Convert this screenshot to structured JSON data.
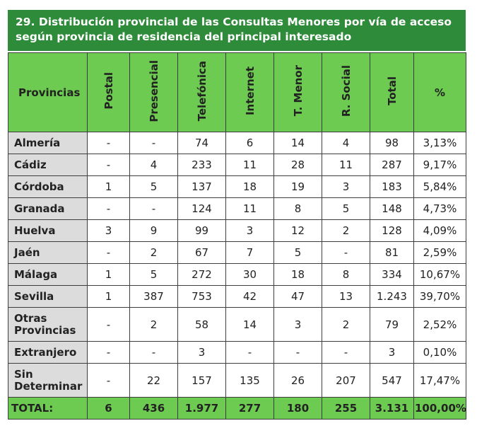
{
  "title": {
    "line1": "29. Distribución provincial de las Consultas Menores por vía de acceso",
    "line2": "según provincia de residencia del principal interesado"
  },
  "headers": [
    "Provincias",
    "Postal",
    "Presencial",
    "Telefónica",
    "Internet",
    "T. Menor",
    "R. Social",
    "Total",
    "%"
  ],
  "rows": [
    {
      "prov": [
        "Almería"
      ],
      "vals": [
        "-",
        "-",
        "74",
        "6",
        "14",
        "4",
        "98",
        "3,13%"
      ]
    },
    {
      "prov": [
        "Cádiz"
      ],
      "vals": [
        "-",
        "4",
        "233",
        "11",
        "28",
        "11",
        "287",
        "9,17%"
      ]
    },
    {
      "prov": [
        "Córdoba"
      ],
      "vals": [
        "1",
        "5",
        "137",
        "18",
        "19",
        "3",
        "183",
        "5,84%"
      ]
    },
    {
      "prov": [
        "Granada"
      ],
      "vals": [
        "-",
        "-",
        "124",
        "11",
        "8",
        "5",
        "148",
        "4,73%"
      ]
    },
    {
      "prov": [
        "Huelva"
      ],
      "vals": [
        "3",
        "9",
        "99",
        "3",
        "12",
        "2",
        "128",
        "4,09%"
      ]
    },
    {
      "prov": [
        "Jaén"
      ],
      "vals": [
        "-",
        "2",
        "67",
        "7",
        "5",
        "-",
        "81",
        "2,59%"
      ]
    },
    {
      "prov": [
        "Málaga"
      ],
      "vals": [
        "1",
        "5",
        "272",
        "30",
        "18",
        "8",
        "334",
        "10,67%"
      ]
    },
    {
      "prov": [
        "Sevilla"
      ],
      "vals": [
        "1",
        "387",
        "753",
        "42",
        "47",
        "13",
        "1.243",
        "39,70%"
      ]
    },
    {
      "prov": [
        "Otras",
        "Provincias"
      ],
      "vals": [
        "-",
        "2",
        "58",
        "14",
        "3",
        "2",
        "79",
        "2,52%"
      ]
    },
    {
      "prov": [
        "Extranjero"
      ],
      "vals": [
        "-",
        "-",
        "3",
        "-",
        "-",
        "-",
        "3",
        "0,10%"
      ]
    },
    {
      "prov": [
        "Sin",
        "Determinar"
      ],
      "vals": [
        "-",
        "22",
        "157",
        "135",
        "26",
        "207",
        "547",
        "17,47%"
      ]
    }
  ],
  "total": {
    "label": "TOTAL:",
    "vals": [
      "6",
      "436",
      "1.977",
      "277",
      "180",
      "255",
      "3.131",
      "100,00%"
    ]
  }
}
